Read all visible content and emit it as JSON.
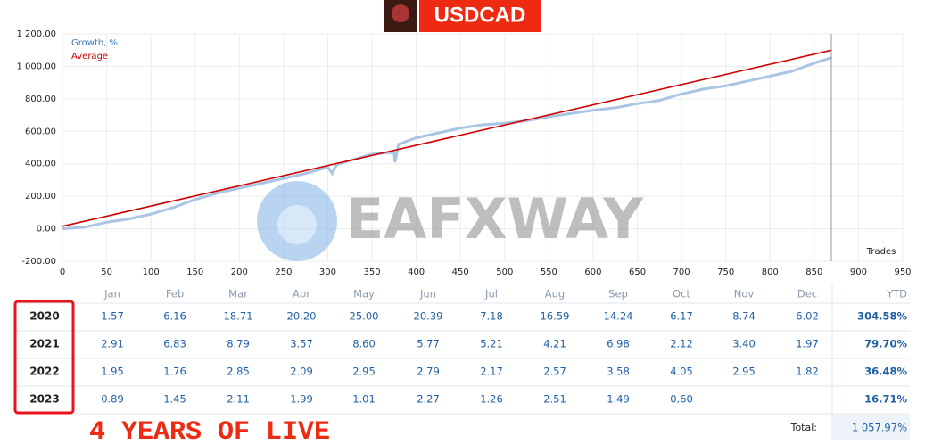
{
  "banner": {
    "title": "USDCAD"
  },
  "watermark": "EAFXWAY",
  "footer": "4 YEARS OF LIVE",
  "chart_data": {
    "type": "line",
    "xlabel": "Trades",
    "xlim": [
      0,
      950
    ],
    "xticks": [
      0,
      50,
      100,
      150,
      200,
      250,
      300,
      350,
      400,
      450,
      500,
      550,
      600,
      650,
      700,
      750,
      800,
      850,
      900,
      950
    ],
    "ylim": [
      -200,
      1200
    ],
    "yticks": [
      {
        "value": -200,
        "label": "-200.00"
      },
      {
        "value": 0,
        "label": "0.00"
      },
      {
        "value": 200,
        "label": "200.00"
      },
      {
        "value": 400,
        "label": "400.00"
      },
      {
        "value": 600,
        "label": "600.00"
      },
      {
        "value": 800,
        "label": "800.00"
      },
      {
        "value": 1000,
        "label": "1 000.00"
      },
      {
        "value": 1200,
        "label": "1 200.00"
      }
    ],
    "grid": true,
    "series": [
      {
        "name": "Growth, %",
        "color": "#a9c4e4",
        "label_color": "#3b7cc4",
        "x": [
          0,
          25,
          50,
          75,
          100,
          125,
          150,
          175,
          200,
          225,
          250,
          275,
          300,
          305,
          310,
          350,
          375,
          376,
          380,
          400,
          425,
          450,
          475,
          500,
          525,
          550,
          575,
          600,
          625,
          650,
          675,
          700,
          725,
          750,
          775,
          800,
          825,
          850,
          870
        ],
        "values": [
          0,
          10,
          40,
          60,
          90,
          130,
          180,
          220,
          250,
          280,
          310,
          340,
          380,
          340,
          395,
          460,
          470,
          410,
          520,
          560,
          590,
          620,
          640,
          650,
          665,
          690,
          710,
          730,
          745,
          770,
          790,
          830,
          860,
          880,
          910,
          940,
          970,
          1020,
          1055
        ]
      },
      {
        "name": "Average",
        "color": "#d00000",
        "label_color": "#cc0000",
        "x": [
          0,
          870
        ],
        "values": [
          15,
          1100
        ]
      }
    ]
  },
  "table": {
    "months": [
      "Jan",
      "Feb",
      "Mar",
      "Apr",
      "May",
      "Jun",
      "Jul",
      "Aug",
      "Sep",
      "Oct",
      "Nov",
      "Dec"
    ],
    "ytd_header": "YTD",
    "rows": [
      {
        "year": "2020",
        "values": [
          "1.57",
          "6.16",
          "18.71",
          "20.20",
          "25.00",
          "20.39",
          "7.18",
          "16.59",
          "14.24",
          "6.17",
          "8.74",
          "6.02"
        ],
        "ytd": "304.58%"
      },
      {
        "year": "2021",
        "values": [
          "2.91",
          "6.83",
          "8.79",
          "3.57",
          "8.60",
          "5.77",
          "5.21",
          "4.21",
          "6.98",
          "2.12",
          "3.40",
          "1.97"
        ],
        "ytd": "79.70%"
      },
      {
        "year": "2022",
        "values": [
          "1.95",
          "1.76",
          "2.85",
          "2.09",
          "2.95",
          "2.79",
          "2.17",
          "2.57",
          "3.58",
          "4.05",
          "2.95",
          "1.82"
        ],
        "ytd": "36.48%"
      },
      {
        "year": "2023",
        "values": [
          "0.89",
          "1.45",
          "2.11",
          "1.99",
          "1.01",
          "2.27",
          "1.26",
          "2.51",
          "1.49",
          "0.60"
        ],
        "ytd": "16.71%"
      }
    ],
    "total_label": "Total:",
    "total": "1 057.97%"
  }
}
